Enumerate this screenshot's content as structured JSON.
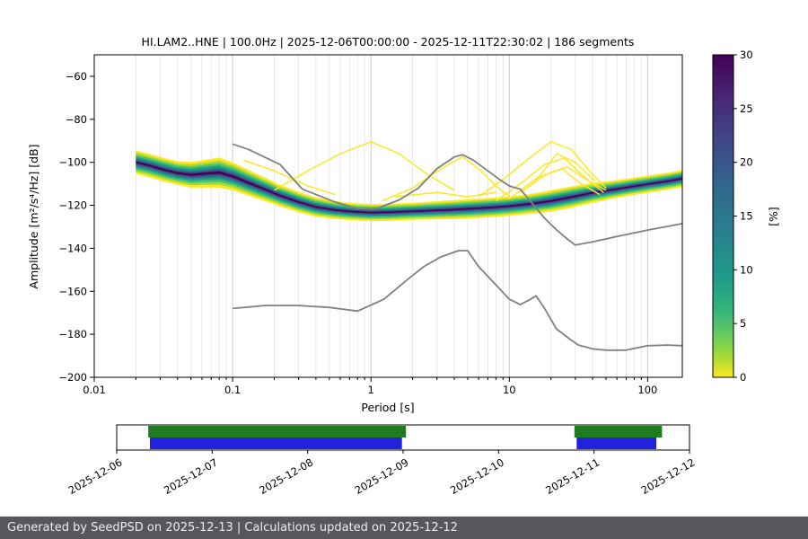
{
  "chart_data": {
    "type": "heatmap",
    "title": "HI.LAM2..HNE | 100.0Hz | 2025-12-06T00:00:00 - 2025-12-11T22:30:02 | 186 segments",
    "xlabel": "Period [s]",
    "ylabel": "Amplitude [m²/s⁴/Hz] [dB]",
    "xscale": "log",
    "xlim": [
      0.01,
      178
    ],
    "ylim": [
      -200,
      -50
    ],
    "xticks": {
      "values": [
        0.01,
        0.1,
        1,
        10,
        100
      ],
      "labels": [
        "0.01",
        "0.1",
        "1",
        "10",
        "100"
      ]
    },
    "yticks": {
      "values": [
        -60,
        -80,
        -100,
        -120,
        -140,
        -160,
        -180,
        -200
      ],
      "labels": [
        "−60",
        "−80",
        "−100",
        "−120",
        "−140",
        "−160",
        "−180",
        "−200"
      ]
    },
    "colorbar": {
      "label": "[%]",
      "min": 0,
      "max": 30,
      "ticks": [
        0,
        5,
        10,
        15,
        20,
        25,
        30
      ],
      "gradient": [
        [
          "0",
          "#440154"
        ],
        [
          "0.14",
          "#482878"
        ],
        [
          "0.28",
          "#3e4a89"
        ],
        [
          "0.42",
          "#31688e"
        ],
        [
          "0.56",
          "#26828e"
        ],
        [
          "0.70",
          "#1f9e89"
        ],
        [
          "0.80",
          "#35b779"
        ],
        [
          "0.88",
          "#6ece58"
        ],
        [
          "0.95",
          "#b5de2b"
        ],
        [
          "1",
          "#fde725"
        ]
      ]
    },
    "ppsd_band": {
      "periods": [
        0.02,
        0.025,
        0.032,
        0.04,
        0.05,
        0.065,
        0.08,
        0.1,
        0.13,
        0.17,
        0.22,
        0.3,
        0.4,
        0.55,
        0.75,
        1.0,
        1.4,
        2.0,
        2.8,
        4.0,
        5.5,
        7.5,
        10,
        14,
        20,
        28,
        40,
        55,
        75,
        100,
        140,
        178
      ],
      "center_db": [
        -100,
        -101.5,
        -103.5,
        -105,
        -105.8,
        -105.2,
        -104.8,
        -106.5,
        -109.5,
        -112.5,
        -115.5,
        -118.5,
        -120.8,
        -122.2,
        -123.0,
        -123.4,
        -123.2,
        -122.8,
        -122.4,
        -122.0,
        -121.5,
        -121.0,
        -120.4,
        -119.4,
        -118.0,
        -116.2,
        -114.2,
        -112.8,
        -111.4,
        -110.2,
        -108.8,
        -107.6
      ],
      "halfwidth_db": [
        5.5,
        5.5,
        5.5,
        5.5,
        6,
        6.5,
        7,
        6.5,
        6,
        5.5,
        5,
        4.8,
        4.5,
        4.2,
        4,
        4,
        4,
        4,
        4.2,
        4.4,
        4.5,
        4.5,
        4.5,
        4.6,
        5,
        5,
        4.6,
        4.2,
        4,
        4,
        4,
        4
      ],
      "levels": [
        {
          "frac": 1.0,
          "color": "#fde725"
        },
        {
          "frac": 0.8,
          "color": "#a0da39"
        },
        {
          "frac": 0.63,
          "color": "#4ac16d"
        },
        {
          "frac": 0.47,
          "color": "#1fa187"
        },
        {
          "frac": 0.33,
          "color": "#2a788e"
        },
        {
          "frac": 0.19,
          "color": "#414487"
        },
        {
          "frac": 0.08,
          "color": "#440154"
        }
      ]
    },
    "outlier_color": "#fde725",
    "outlier_curves": [
      [
        [
          0.2,
          -113
        ],
        [
          0.35,
          -104
        ],
        [
          0.6,
          -96
        ],
        [
          1.0,
          -90.5
        ],
        [
          1.6,
          -96
        ],
        [
          2.6,
          -106
        ],
        [
          4,
          -113
        ]
      ],
      [
        [
          1.2,
          -118
        ],
        [
          2,
          -112
        ],
        [
          3.2,
          -103
        ],
        [
          4.6,
          -97.5
        ],
        [
          6,
          -103
        ],
        [
          8,
          -111
        ],
        [
          10,
          -116
        ]
      ],
      [
        [
          6,
          -116
        ],
        [
          9,
          -108
        ],
        [
          14,
          -98
        ],
        [
          20,
          -90.5
        ],
        [
          28,
          -94
        ],
        [
          38,
          -104
        ],
        [
          50,
          -112
        ]
      ],
      [
        [
          8,
          -118
        ],
        [
          12,
          -110
        ],
        [
          18,
          -101
        ],
        [
          25,
          -98
        ],
        [
          35,
          -107
        ],
        [
          48,
          -114
        ]
      ],
      [
        [
          10,
          -117
        ],
        [
          16,
          -107
        ],
        [
          24,
          -103
        ],
        [
          33,
          -110
        ],
        [
          45,
          -115
        ]
      ],
      [
        [
          0.12,
          -99
        ],
        [
          0.2,
          -104
        ],
        [
          0.35,
          -111
        ],
        [
          0.55,
          -115
        ]
      ],
      [
        [
          12,
          -114
        ],
        [
          18,
          -106
        ],
        [
          26,
          -102
        ],
        [
          36,
          -108
        ],
        [
          50,
          -113
        ]
      ],
      [
        [
          1.5,
          -116
        ],
        [
          3,
          -114
        ],
        [
          5,
          -116
        ],
        [
          8,
          -114
        ]
      ],
      [
        [
          15,
          -110
        ],
        [
          22,
          -96
        ],
        [
          30,
          -100
        ],
        [
          42,
          -109
        ]
      ]
    ],
    "noise_models": {
      "color": "#808080",
      "high": [
        [
          0.1,
          -91.5
        ],
        [
          0.13,
          -94
        ],
        [
          0.22,
          -101
        ],
        [
          0.32,
          -112.5
        ],
        [
          0.55,
          -118.5
        ],
        [
          0.8,
          -121.5
        ],
        [
          1.1,
          -121.5
        ],
        [
          1.6,
          -117.5
        ],
        [
          2.2,
          -112
        ],
        [
          3.0,
          -103
        ],
        [
          4.0,
          -97.5
        ],
        [
          4.6,
          -96.5
        ],
        [
          5.5,
          -99
        ],
        [
          7,
          -104
        ],
        [
          8.5,
          -108
        ],
        [
          10,
          -111
        ],
        [
          12,
          -112.5
        ],
        [
          15.5,
          -121
        ],
        [
          18,
          -126
        ],
        [
          22,
          -131.5
        ],
        [
          26,
          -135.5
        ],
        [
          30,
          -138.5
        ],
        [
          40,
          -137
        ],
        [
          60,
          -134.5
        ],
        [
          100,
          -131.5
        ],
        [
          140,
          -129.8
        ],
        [
          178,
          -128.5
        ]
      ],
      "low": [
        [
          0.1,
          -168
        ],
        [
          0.17,
          -166.6
        ],
        [
          0.3,
          -166.6
        ],
        [
          0.5,
          -167.5
        ],
        [
          0.8,
          -169.2
        ],
        [
          1.24,
          -163.7
        ],
        [
          1.8,
          -155
        ],
        [
          2.4,
          -148.6
        ],
        [
          3.2,
          -144
        ],
        [
          4.3,
          -141.1
        ],
        [
          5,
          -141.1
        ],
        [
          6,
          -148.5
        ],
        [
          8,
          -157
        ],
        [
          10,
          -163.7
        ],
        [
          12,
          -166.2
        ],
        [
          14,
          -164
        ],
        [
          15.6,
          -162.1
        ],
        [
          18,
          -168
        ],
        [
          21.9,
          -177.5
        ],
        [
          27,
          -182
        ],
        [
          31.6,
          -185
        ],
        [
          40,
          -186.8
        ],
        [
          50,
          -187.4
        ],
        [
          70,
          -187.4
        ],
        [
          100,
          -185.3
        ],
        [
          140,
          -185
        ],
        [
          178,
          -185.3
        ]
      ]
    }
  },
  "timeline": {
    "dates": [
      "2025-12-06",
      "2025-12-07",
      "2025-12-08",
      "2025-12-09",
      "2025-12-10",
      "2025-12-11",
      "2025-12-12"
    ],
    "segments": [
      {
        "color": "#1f7d1f",
        "row": 0,
        "start": 0.055,
        "end": 0.505
      },
      {
        "color": "#2222dd",
        "row": 1,
        "start": 0.058,
        "end": 0.498
      },
      {
        "color": "#1f7d1f",
        "row": 0,
        "start": 0.799,
        "end": 0.952
      },
      {
        "color": "#2222dd",
        "row": 1,
        "start": 0.803,
        "end": 0.942
      }
    ]
  },
  "footer": {
    "text": "Generated by SeedPSD on 2025-12-13 | Calculations updated on 2025-12-12",
    "bg": "#55575b"
  }
}
